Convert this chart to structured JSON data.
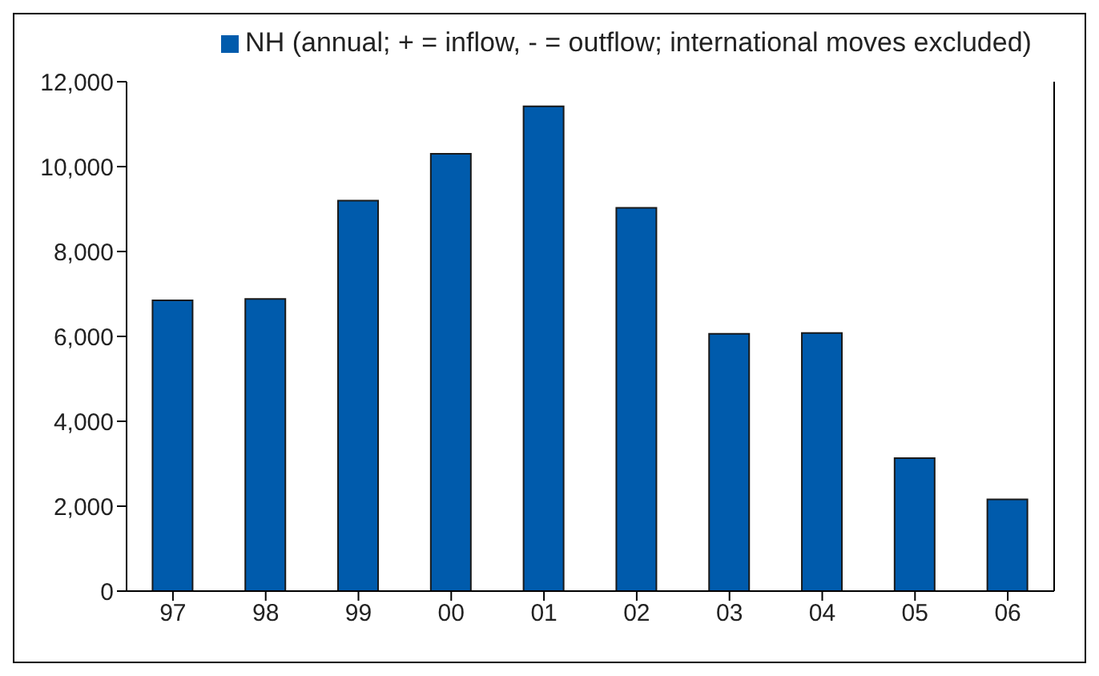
{
  "chart_data": {
    "type": "bar",
    "categories": [
      "97",
      "98",
      "99",
      "00",
      "01",
      "02",
      "03",
      "04",
      "05",
      "06"
    ],
    "series": [
      {
        "name": "NH (annual; + = inflow, - = outflow; international moves excluded)",
        "color": "#005bac",
        "values": [
          6850,
          6880,
          9200,
          10300,
          11420,
          9030,
          6060,
          6080,
          3130,
          2160
        ]
      }
    ],
    "ylim": [
      0,
      12000
    ],
    "yticks": [
      {
        "value": 0,
        "label": "0"
      },
      {
        "value": 2000,
        "label": "2,000"
      },
      {
        "value": 4000,
        "label": "4,000"
      },
      {
        "value": 6000,
        "label": "6,000"
      },
      {
        "value": 8000,
        "label": "8,000"
      },
      {
        "value": 10000,
        "label": "10,000"
      },
      {
        "value": 12000,
        "label": "12,000"
      }
    ],
    "grid": false,
    "legend": "top"
  }
}
